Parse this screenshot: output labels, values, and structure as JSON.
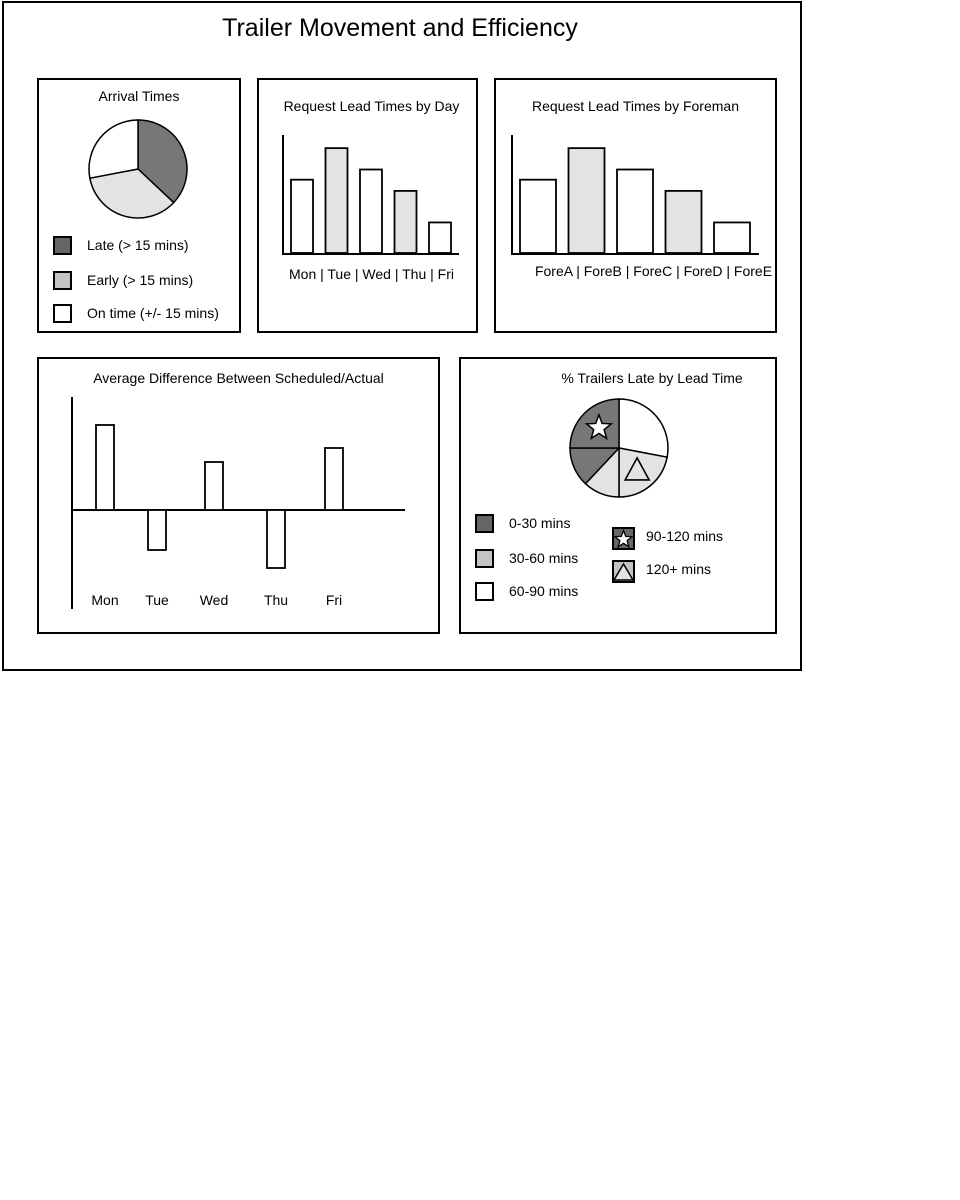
{
  "title": "Trailer Movement and Efficiency",
  "colors": {
    "dark": "#777777",
    "mid": "#e3e3e3",
    "light": "#ffffff",
    "legend_dark": "#666666",
    "legend_mid": "#c4c4c4"
  },
  "chart_data": [
    {
      "id": "arrival",
      "type": "pie",
      "title": "Arrival Times",
      "slices": [
        {
          "label": "Late (> 15 mins)",
          "value": 37,
          "color": "#777777",
          "legend_color": "#666666"
        },
        {
          "label": "Early (> 15 mins)",
          "value": 35,
          "color": "#e3e3e3",
          "legend_color": "#c4c4c4"
        },
        {
          "label": "On time (+/- 15 mins)",
          "value": 28,
          "color": "#ffffff",
          "legend_color": "#ffffff"
        }
      ]
    },
    {
      "id": "by-day",
      "type": "bar",
      "title": "Request Lead Times by Day",
      "categories": [
        "Mon",
        "Tue",
        "Wed",
        "Thu",
        "Fri"
      ],
      "category_label": "Mon | Tue | Wed | Thu | Fri",
      "values": [
        72,
        103,
        82,
        61,
        30
      ],
      "fills": [
        "#ffffff",
        "#e3e3e3",
        "#ffffff",
        "#e3e3e3",
        "#ffffff"
      ],
      "ylim": [
        0,
        110
      ]
    },
    {
      "id": "by-foreman",
      "type": "bar",
      "title": "Request Lead Times by Foreman",
      "categories": [
        "ForeA",
        "ForeB",
        "ForeC",
        "ForeD",
        "ForeE"
      ],
      "category_label": "ForeA | ForeB | ForeC | ForeD | ForeE",
      "values": [
        72,
        103,
        82,
        61,
        30
      ],
      "fills": [
        "#ffffff",
        "#e3e3e3",
        "#ffffff",
        "#e3e3e3",
        "#ffffff"
      ],
      "ylim": [
        0,
        110
      ]
    },
    {
      "id": "avg-diff",
      "type": "bar",
      "title": "Average Difference Between Scheduled/Actual",
      "categories": [
        "Mon",
        "Tue",
        "Wed",
        "Thu",
        "Fri"
      ],
      "values": [
        85,
        -40,
        48,
        -58,
        62
      ],
      "ylim": [
        -100,
        112
      ]
    },
    {
      "id": "late-pct",
      "type": "pie",
      "title": "% Trailers Late by Lead Time",
      "slices": [
        {
          "label": "60-90 mins",
          "value": 28,
          "color": "#ffffff",
          "legend_color": "#ffffff"
        },
        {
          "label": "120+ mins",
          "value": 22,
          "color": "#e3e3e3",
          "legend_color": "#c4c4c4",
          "marker": "triangle"
        },
        {
          "label": "30-60 mins",
          "value": 12,
          "color": "#e3e3e3",
          "legend_color": "#c4c4c4"
        },
        {
          "label": "0-30 mins",
          "value": 13,
          "color": "#777777",
          "legend_color": "#666666"
        },
        {
          "label": "90-120 mins",
          "value": 25,
          "color": "#777777",
          "legend_color": "#666666",
          "marker": "star"
        }
      ],
      "legend_order": [
        "0-30 mins",
        "30-60 mins",
        "60-90 mins",
        "90-120 mins",
        "120+ mins"
      ]
    }
  ]
}
